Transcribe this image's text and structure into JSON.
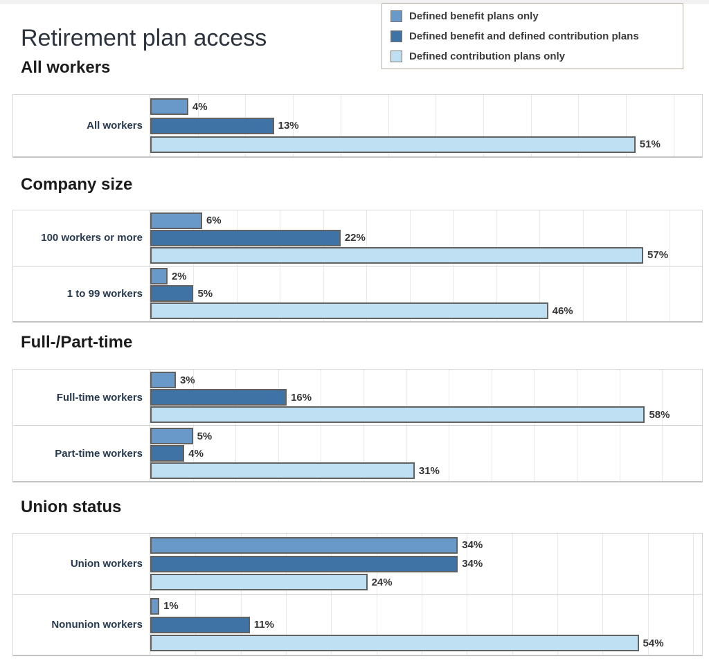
{
  "title": "Retirement plan access",
  "legend": {
    "items": [
      {
        "name": "defined-benefit-only",
        "label": "Defined benefit plans only",
        "color": "#6899c8"
      },
      {
        "name": "defined-benefit-and-contribution",
        "label": "Defined benefit and defined contribution plans",
        "color": "#3f73a6"
      },
      {
        "name": "defined-contribution-only",
        "label": "Defined contribution plans only",
        "color": "#bfe0f2"
      }
    ]
  },
  "chart_data": {
    "type": "bar",
    "orientation": "horizontal",
    "unit": "%",
    "value_suffix": "%",
    "grid": true,
    "grid_step": 5,
    "legend_position": "top-right",
    "series_names": [
      "Defined benefit plans only",
      "Defined benefit and defined contribution plans",
      "Defined contribution plans only"
    ],
    "series_colors": [
      "#6899c8",
      "#3f73a6",
      "#bfe0f2"
    ],
    "sections": [
      {
        "heading": "All workers",
        "axis_min": 0,
        "axis_max": 58,
        "rows": [
          {
            "label": "All workers",
            "values": [
              4,
              13,
              51
            ]
          }
        ]
      },
      {
        "heading": "Company size",
        "axis_min": 0,
        "axis_max": 63.8,
        "rows": [
          {
            "label": "100 workers or more",
            "values": [
              6,
              22,
              57
            ]
          },
          {
            "label": "1 to 99 workers",
            "values": [
              2,
              5,
              46
            ]
          }
        ]
      },
      {
        "heading": "Full-/Part-time",
        "axis_min": 0,
        "axis_max": 64.7,
        "rows": [
          {
            "label": "Full-time workers",
            "values": [
              3,
              16,
              58
            ]
          },
          {
            "label": "Part-time workers",
            "values": [
              5,
              4,
              31
            ]
          }
        ]
      },
      {
        "heading": "Union status",
        "axis_min": 0,
        "axis_max": 61,
        "rows": [
          {
            "label": "Union workers",
            "values": [
              34,
              34,
              24
            ]
          },
          {
            "label": "Nonunion workers",
            "values": [
              1,
              11,
              54
            ]
          }
        ]
      }
    ]
  },
  "colors": {
    "bar_border": "#616161",
    "row_label_text": "#28394f",
    "value_text": "#363636",
    "heading_text": "#1b1b1b",
    "title_text": "#2d333d",
    "legend_border": "#b2ac9f",
    "panel_border": "#d6d6d6",
    "gridline": "#e9e9e9"
  }
}
